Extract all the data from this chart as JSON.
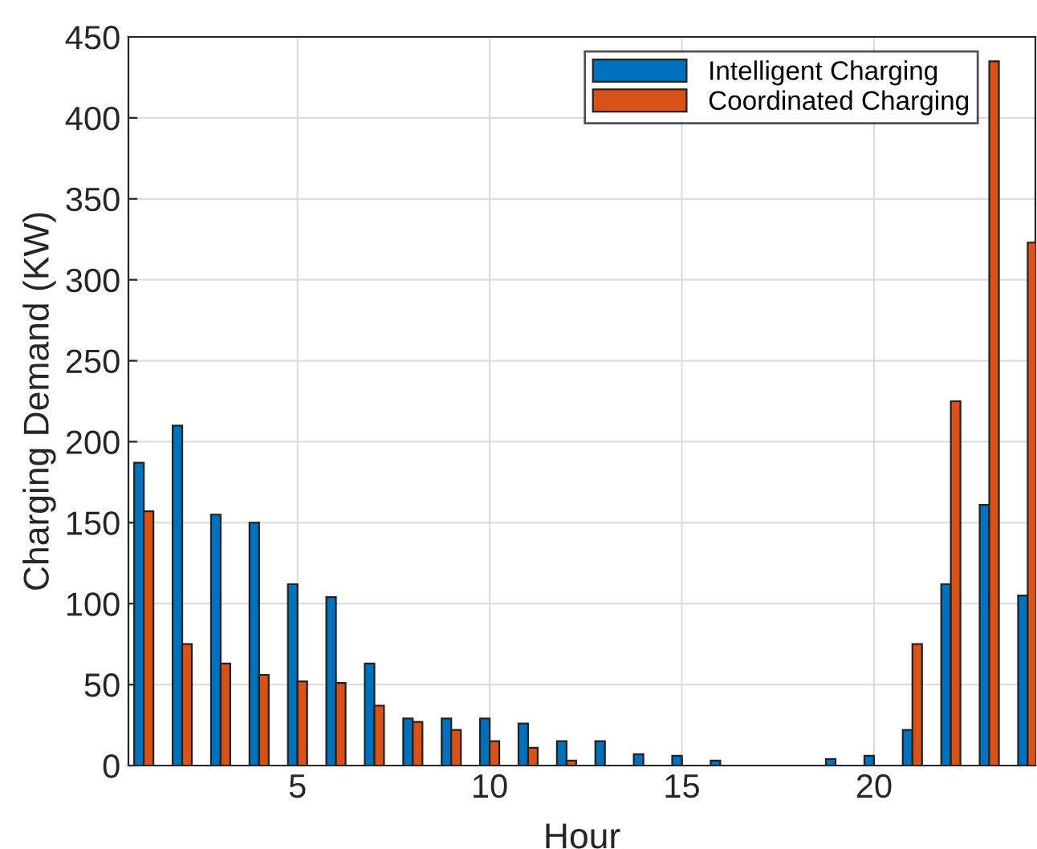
{
  "chart_data": {
    "type": "bar",
    "xlabel": "Hour",
    "ylabel": "Charging Demand (KW)",
    "x": [
      1,
      2,
      3,
      4,
      5,
      6,
      7,
      8,
      9,
      10,
      11,
      12,
      13,
      14,
      15,
      16,
      17,
      18,
      19,
      20,
      21,
      22,
      23,
      24
    ],
    "series": [
      {
        "name": "Intelligent Charging",
        "color": "#0072bd",
        "values": [
          187,
          210,
          155,
          150,
          112,
          104,
          63,
          29,
          29,
          29,
          26,
          15,
          15,
          7,
          6,
          3,
          0,
          null,
          4,
          6,
          22,
          112,
          161,
          105
        ]
      },
      {
        "name": "Coordinated Charging",
        "color": "#d95319",
        "values": [
          157,
          75,
          63,
          56,
          52,
          51,
          37,
          27,
          22,
          15,
          11,
          3,
          0,
          0,
          0,
          0,
          0,
          0,
          0,
          0,
          75,
          225,
          435,
          323
        ]
      }
    ],
    "xlim": [
      0.6,
      24.2
    ],
    "xticks": [
      5,
      10,
      15,
      20
    ],
    "ylim": [
      0,
      450
    ],
    "yticks": [
      0,
      50,
      100,
      150,
      200,
      250,
      300,
      350,
      400,
      450
    ],
    "grid": true,
    "legend": "top right"
  }
}
